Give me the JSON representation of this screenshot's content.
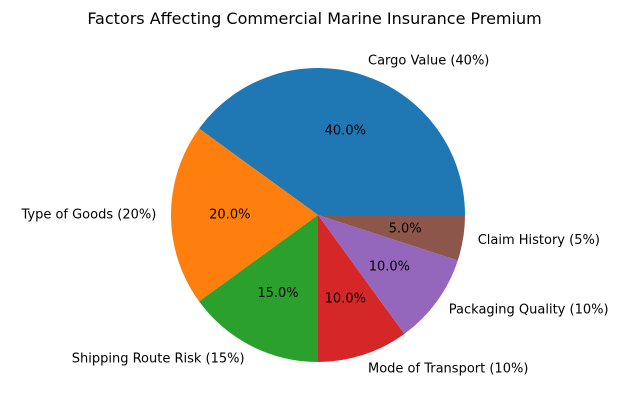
{
  "chart_data": {
    "type": "pie",
    "title": "Factors Affecting Commercial Marine Insurance Premium",
    "start_angle_deg": 0,
    "direction": "counterclockwise",
    "legend": "none",
    "background_color": "#ffffff",
    "categories": [
      "Cargo Value",
      "Type of Goods",
      "Shipping Route Risk",
      "Mode of Transport",
      "Packaging Quality",
      "Claim History"
    ],
    "values": [
      40,
      20,
      15,
      10,
      10,
      5
    ],
    "slices": [
      {
        "label": "Cargo Value (40%)",
        "value": 40,
        "pct_label": "40.0%",
        "color": "#1f77b4"
      },
      {
        "label": "Type of Goods (20%)",
        "value": 20,
        "pct_label": "20.0%",
        "color": "#ff7f0e"
      },
      {
        "label": "Shipping Route Risk (15%)",
        "value": 15,
        "pct_label": "15.0%",
        "color": "#2ca02c"
      },
      {
        "label": "Mode of Transport (10%)",
        "value": 10,
        "pct_label": "10.0%",
        "color": "#d62728"
      },
      {
        "label": "Packaging Quality (10%)",
        "value": 10,
        "pct_label": "10.0%",
        "color": "#9467bd"
      },
      {
        "label": "Claim History (5%)",
        "value": 5,
        "pct_label": "5.0%",
        "color": "#8c564b"
      }
    ]
  }
}
